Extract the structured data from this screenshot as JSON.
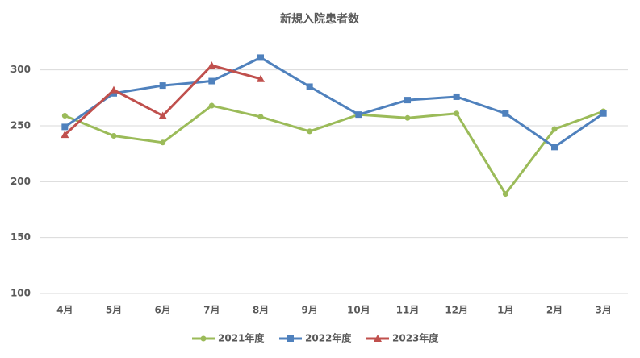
{
  "chart_data": {
    "type": "line",
    "title": "新規入院患者数",
    "categories": [
      "4月",
      "5月",
      "6月",
      "7月",
      "8月",
      "9月",
      "10月",
      "11月",
      "12月",
      "1月",
      "2月",
      "3月"
    ],
    "series": [
      {
        "name": "2021年度",
        "color": "#9bbb59",
        "marker": "circle",
        "values": [
          259,
          241,
          235,
          268,
          258,
          245,
          260,
          257,
          261,
          189,
          247,
          263
        ]
      },
      {
        "name": "2022年度",
        "color": "#4f81bd",
        "marker": "square",
        "values": [
          249,
          279,
          286,
          290,
          311,
          285,
          260,
          273,
          276,
          261,
          231,
          261
        ]
      },
      {
        "name": "2023年度",
        "color": "#c0504d",
        "marker": "triangle",
        "values": [
          242,
          282,
          259,
          304,
          292,
          null,
          null,
          null,
          null,
          null,
          null,
          null
        ]
      }
    ],
    "ylim": [
      100,
      325
    ],
    "yticks": [
      100,
      150,
      200,
      250,
      300
    ],
    "grid": true,
    "legend": "bottom"
  }
}
